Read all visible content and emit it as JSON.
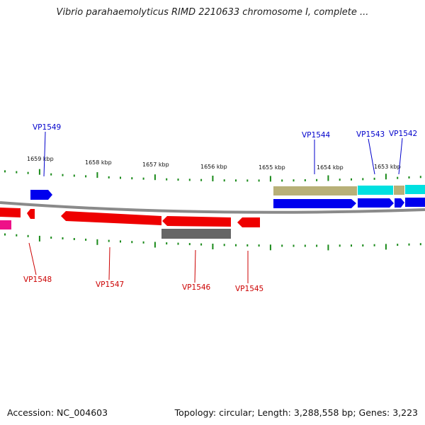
{
  "header": {
    "title": "Vibrio parahaemolyticus RIMD 2210633 chromosome I, complete ..."
  },
  "footer": {
    "accession": "Accession: NC_004603",
    "topology": "Topology: circular; Length: 3,288,558 bp; Genes: 3,223"
  },
  "colors": {
    "backbone": "#8a8a8a",
    "tick": "#1a8a1a",
    "forward_label": "#0000cc",
    "reverse_label": "#cc0000",
    "gene_blue": "#0000ee",
    "gene_red": "#ee0000",
    "gene_gray": "#666666",
    "gene_tan": "#b8b078",
    "gene_cyan": "#00e0e0",
    "gene_magenta": "#ee1188"
  },
  "scale": {
    "unit": "kbp",
    "labels": [
      "1659 kbp",
      "1658 kbp",
      "1657 kbp",
      "1656 kbp",
      "1655 kbp",
      "1654 kbp",
      "1653 kbp"
    ]
  },
  "gene_labels": {
    "forward": [
      "VP1549",
      "VP1544",
      "VP1543",
      "VP1542"
    ],
    "reverse": [
      "VP1548",
      "VP1547",
      "VP1546",
      "VP1545"
    ]
  }
}
